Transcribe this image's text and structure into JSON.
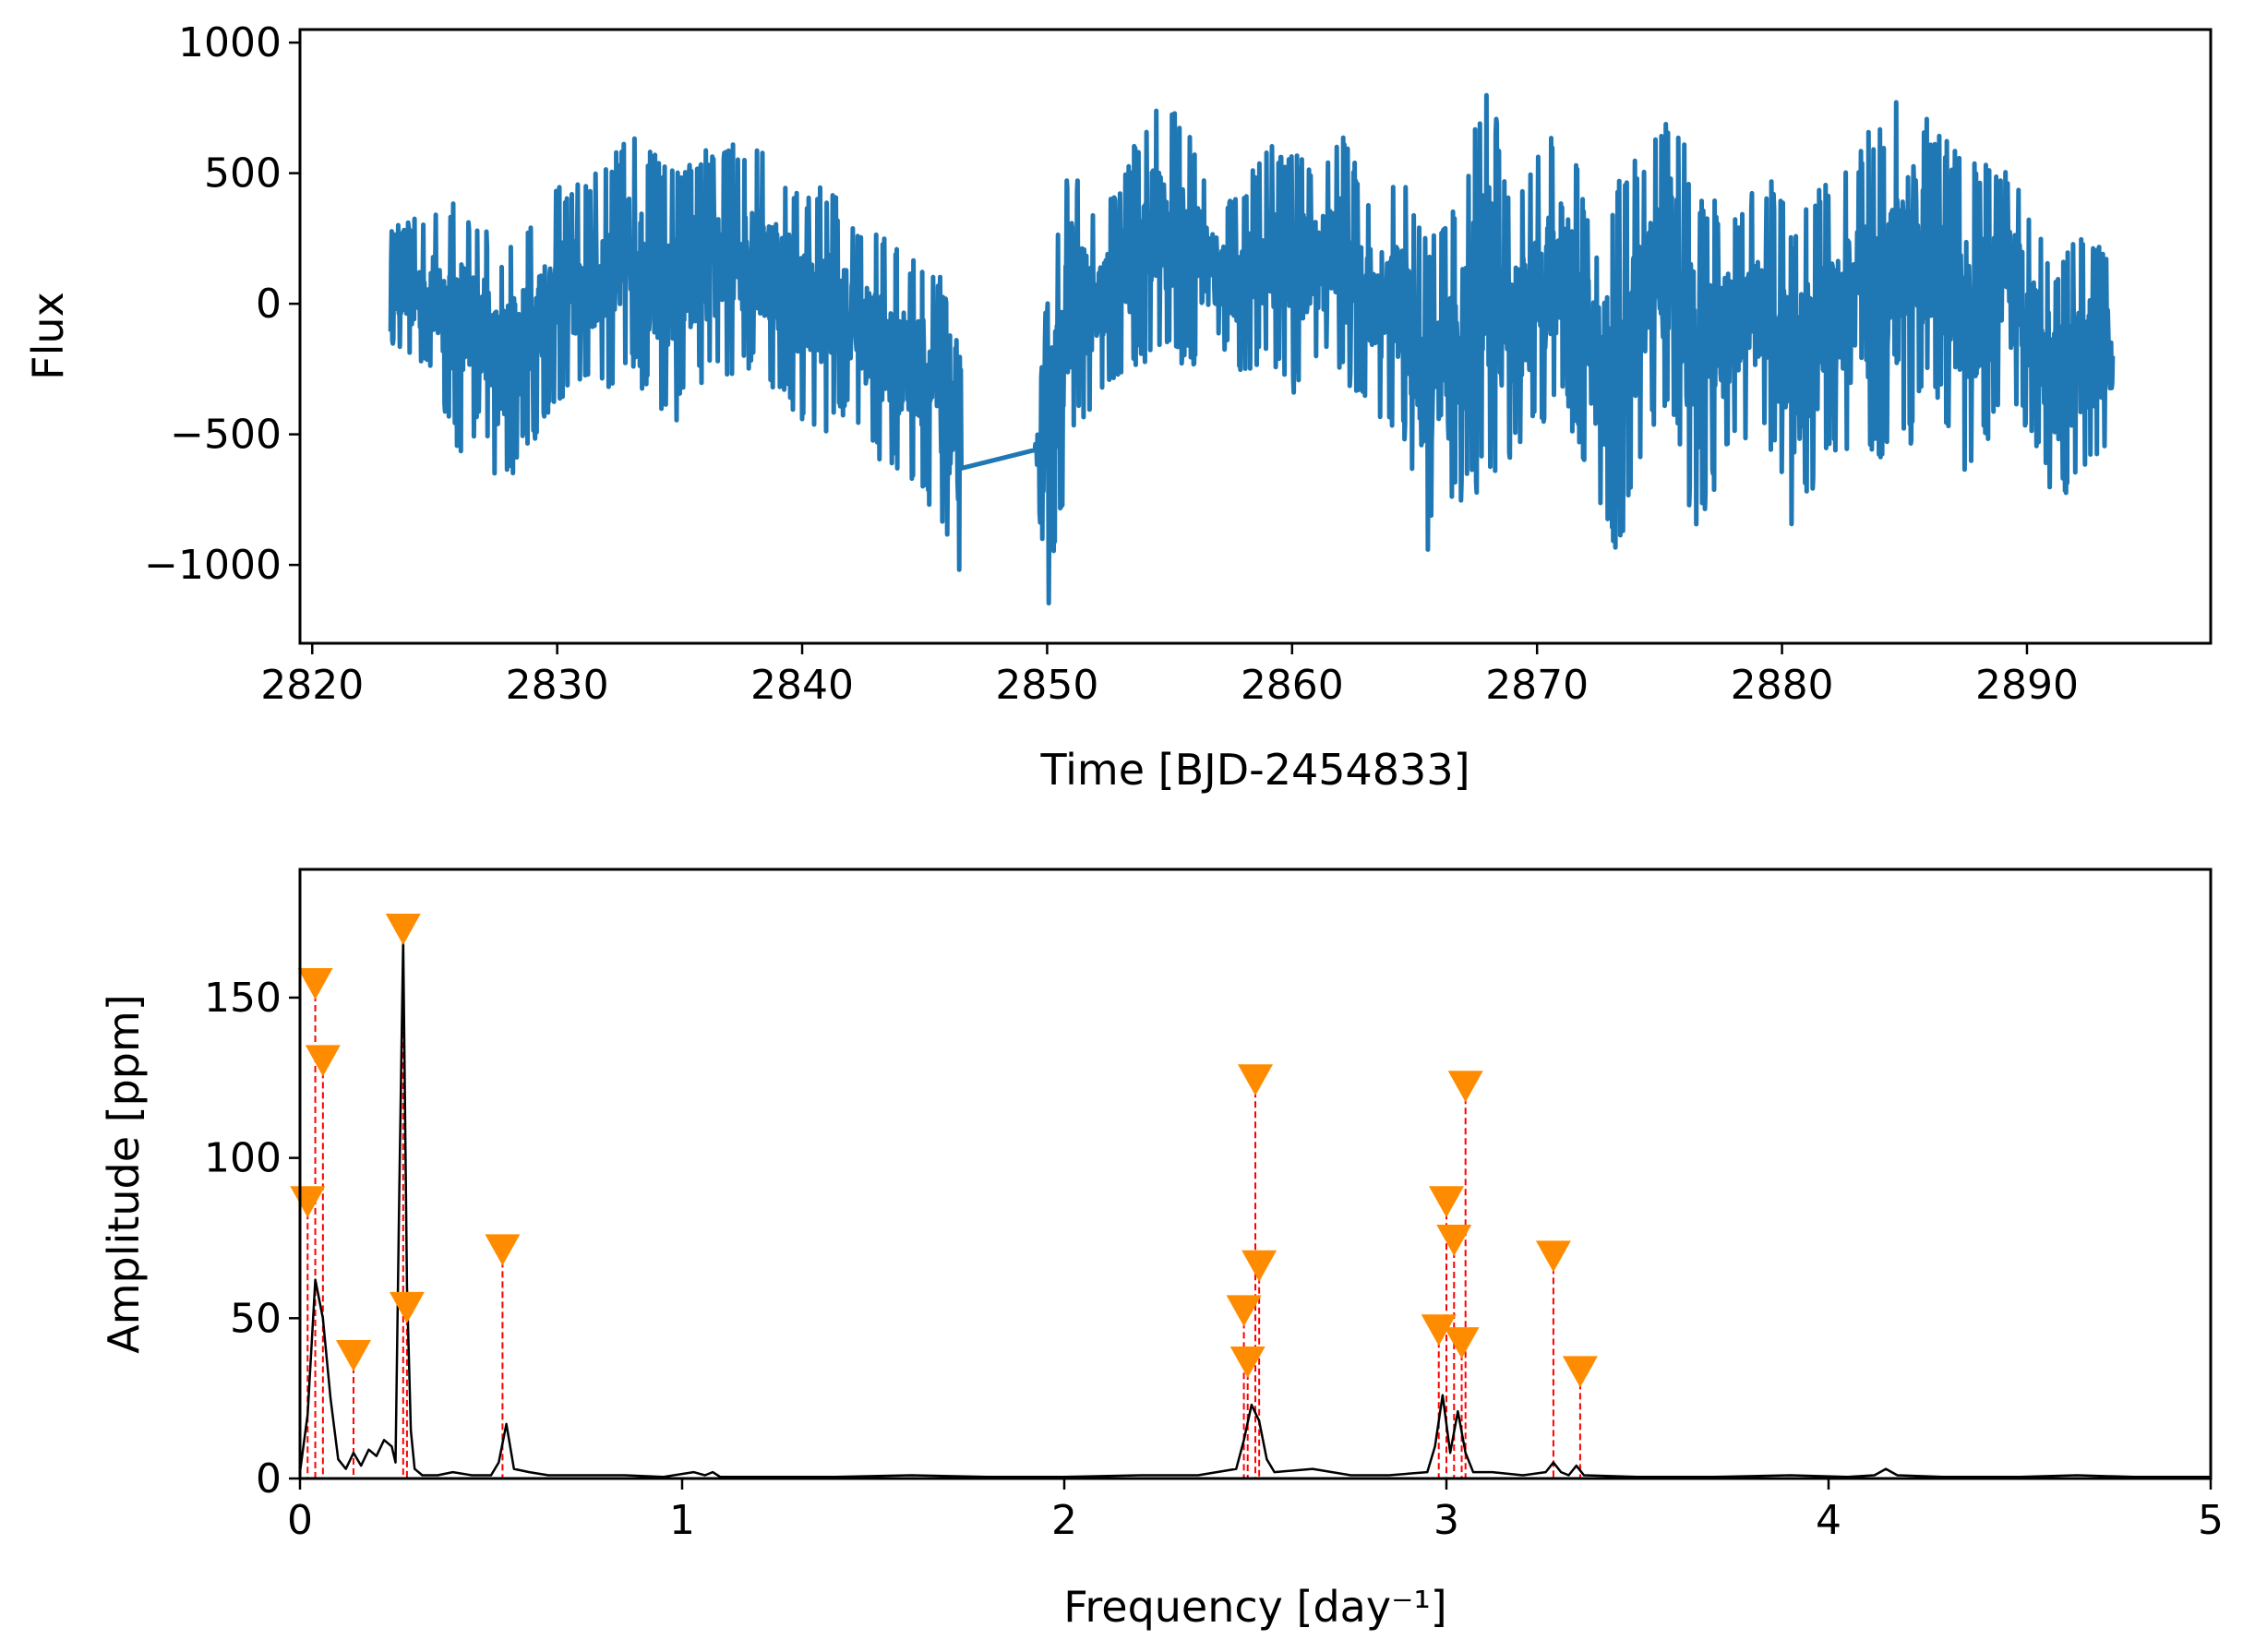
{
  "chart_data": [
    {
      "type": "line",
      "title": "",
      "xlabel": "Time [BJD-2454833]",
      "ylabel": "Flux",
      "xlim": [
        2819.5,
        2897.5
      ],
      "ylim": [
        -1300,
        1050
      ],
      "xticks": [
        2820,
        2830,
        2840,
        2850,
        2860,
        2870,
        2880,
        2890
      ],
      "yticks": [
        -1000,
        -500,
        0,
        500,
        1000
      ],
      "xtick_labels": [
        "2820",
        "2830",
        "2840",
        "2850",
        "2860",
        "2870",
        "2880",
        "2890"
      ],
      "ytick_labels": [
        "−1000",
        "−500",
        "0",
        "500",
        "1000"
      ],
      "grid": false,
      "series": [
        {
          "color": "#1f77b4",
          "envelope": [
            [
              2823.2,
              -150,
              300
            ],
            [
              2825,
              -300,
              350
            ],
            [
              2826,
              -600,
              420
            ],
            [
              2827,
              -450,
              300
            ],
            [
              2827.6,
              -750,
              200
            ],
            [
              2828.5,
              -600,
              280
            ],
            [
              2830,
              -400,
              450
            ],
            [
              2831.5,
              -300,
              500
            ],
            [
              2832.5,
              -350,
              600
            ],
            [
              2833,
              -250,
              680
            ],
            [
              2834.5,
              -500,
              550
            ],
            [
              2836,
              -300,
              600
            ],
            [
              2838,
              -250,
              640
            ],
            [
              2840,
              -450,
              450
            ],
            [
              2841,
              -500,
              480
            ],
            [
              2842,
              -400,
              300
            ],
            [
              2843,
              -600,
              280
            ],
            [
              2844.5,
              -700,
              200
            ],
            [
              2845.5,
              -800,
              150
            ],
            [
              2846.5,
              -1060,
              -200
            ],
            [
              2849.5,
              -560,
              -560
            ],
            [
              2850,
              -1220,
              60
            ],
            [
              2851,
              -500,
              600
            ],
            [
              2852,
              -400,
              300
            ],
            [
              2853,
              -300,
              500
            ],
            [
              2854.5,
              -200,
              800
            ],
            [
              2856,
              -250,
              650
            ],
            [
              2857,
              -150,
              380
            ],
            [
              2858,
              -280,
              450
            ],
            [
              2859,
              -200,
              600
            ],
            [
              2860,
              -350,
              620
            ],
            [
              2861,
              -200,
              500
            ],
            [
              2862,
              -300,
              700
            ],
            [
              2863,
              -400,
              420
            ],
            [
              2864.5,
              -500,
              480
            ],
            [
              2865.5,
              -950,
              250
            ],
            [
              2866.5,
              -800,
              350
            ],
            [
              2868,
              -700,
              900
            ],
            [
              2869,
              -600,
              400
            ],
            [
              2871,
              -400,
              720
            ],
            [
              2872.5,
              -750,
              250
            ],
            [
              2873.2,
              -1060,
              500
            ],
            [
              2874.5,
              -550,
              600
            ],
            [
              2875.5,
              -400,
              800
            ],
            [
              2876.5,
              -950,
              450
            ],
            [
              2878,
              -500,
              350
            ],
            [
              2879.5,
              -550,
              500
            ],
            [
              2880.5,
              -880,
              300
            ],
            [
              2882,
              -600,
              520
            ],
            [
              2884,
              -650,
              700
            ],
            [
              2885.3,
              -550,
              930
            ],
            [
              2886,
              -300,
              700
            ],
            [
              2887.5,
              -650,
              550
            ],
            [
              2889.5,
              -400,
              520
            ],
            [
              2890.5,
              -580,
              300
            ],
            [
              2891.2,
              -780,
              150
            ],
            [
              2892.5,
              -650,
              300
            ],
            [
              2893.5,
              -550,
              150
            ]
          ]
        }
      ]
    },
    {
      "type": "line",
      "title": "",
      "xlabel": "Frequency [day⁻¹]",
      "ylabel": "Amplitude [ppm]",
      "xlim": [
        0,
        5
      ],
      "ylim": [
        0,
        190
      ],
      "xticks": [
        0,
        1,
        2,
        3,
        4,
        5
      ],
      "yticks": [
        0,
        50,
        100,
        150
      ],
      "xtick_labels": [
        "0",
        "1",
        "2",
        "3",
        "4",
        "5"
      ],
      "ytick_labels": [
        "0",
        "50",
        "100",
        "150"
      ],
      "grid": false,
      "spectrum": {
        "color": "#000000",
        "x": [
          0,
          0.02,
          0.04,
          0.06,
          0.08,
          0.1,
          0.12,
          0.14,
          0.16,
          0.18,
          0.2,
          0.22,
          0.24,
          0.25,
          0.26,
          0.27,
          0.28,
          0.29,
          0.3,
          0.32,
          0.36,
          0.4,
          0.45,
          0.5,
          0.52,
          0.54,
          0.56,
          0.6,
          0.65,
          0.75,
          0.85,
          0.95,
          1.03,
          1.06,
          1.08,
          1.1,
          1.2,
          1.4,
          1.6,
          1.8,
          2.0,
          2.2,
          2.35,
          2.45,
          2.47,
          2.49,
          2.51,
          2.53,
          2.55,
          2.65,
          2.75,
          2.85,
          2.95,
          2.97,
          2.99,
          3.01,
          3.03,
          3.05,
          3.07,
          3.12,
          3.2,
          3.26,
          3.28,
          3.3,
          3.32,
          3.34,
          3.36,
          3.5,
          3.7,
          3.9,
          4.05,
          4.12,
          4.15,
          4.18,
          4.3,
          4.5,
          4.65,
          4.8,
          5.0
        ],
        "y": [
          2,
          20,
          62,
          50,
          25,
          6,
          3,
          8,
          4,
          9,
          7,
          12,
          10,
          5,
          90,
          168,
          60,
          15,
          3,
          1,
          1,
          2,
          1,
          1,
          5,
          17,
          3,
          2,
          1,
          1,
          1,
          0.5,
          2,
          1,
          2,
          0.5,
          0.5,
          0.5,
          1,
          0.5,
          0.5,
          1,
          1,
          3,
          12,
          23,
          18,
          6,
          2,
          3,
          1,
          1,
          2,
          10,
          26,
          8,
          21,
          8,
          2,
          2,
          1,
          2,
          5,
          2,
          1,
          4,
          1,
          0.5,
          0.5,
          1,
          0.5,
          1,
          3,
          1,
          0.5,
          0.5,
          1,
          0.5,
          0.5
        ]
      },
      "peak_markers": {
        "marker_color": "#ff8c00",
        "line_color": "#ff0000",
        "peaks": [
          {
            "f": 0.02,
            "amp": 86
          },
          {
            "f": 0.04,
            "amp": 154
          },
          {
            "f": 0.06,
            "amp": 130
          },
          {
            "f": 0.14,
            "amp": 38
          },
          {
            "f": 0.27,
            "amp": 171
          },
          {
            "f": 0.28,
            "amp": 53
          },
          {
            "f": 0.53,
            "amp": 71
          },
          {
            "f": 2.47,
            "amp": 52
          },
          {
            "f": 2.48,
            "amp": 36
          },
          {
            "f": 2.5,
            "amp": 124
          },
          {
            "f": 2.51,
            "amp": 66
          },
          {
            "f": 2.98,
            "amp": 46
          },
          {
            "f": 3.0,
            "amp": 86
          },
          {
            "f": 3.02,
            "amp": 74
          },
          {
            "f": 3.04,
            "amp": 42
          },
          {
            "f": 3.05,
            "amp": 122
          },
          {
            "f": 3.28,
            "amp": 69
          },
          {
            "f": 3.35,
            "amp": 33
          }
        ]
      }
    }
  ]
}
